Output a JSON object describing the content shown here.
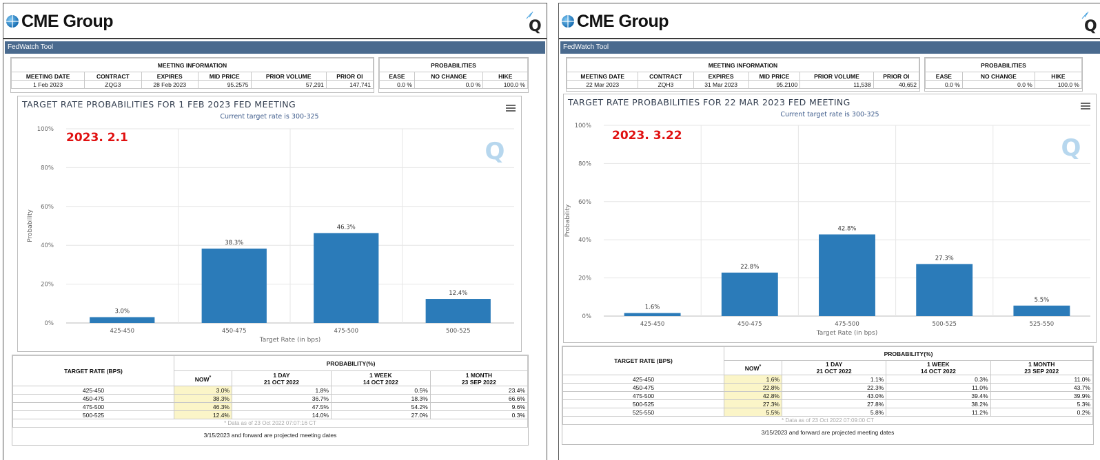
{
  "brand": "CME Group",
  "toolbar_title": "FedWatch Tool",
  "colors": {
    "bar": "#2b7bb9",
    "toolbar": "#4a6a8e",
    "date_label": "#e01010",
    "highlight": "#fbf5c8"
  },
  "panels": [
    {
      "meeting_info_title": "MEETING INFORMATION",
      "probabilities_title": "PROBABILITIES",
      "meeting_headers": [
        "MEETING DATE",
        "CONTRACT",
        "EXPIRES",
        "MID PRICE",
        "PRIOR VOLUME",
        "PRIOR OI"
      ],
      "meeting_values": [
        "1 Feb 2023",
        "ZQG3",
        "28 Feb 2023",
        "95.2575",
        "57,291",
        "147,741"
      ],
      "prob_headers": [
        "EASE",
        "NO CHANGE",
        "HIKE"
      ],
      "prob_values": [
        "0.0 %",
        "0.0 %",
        "100.0 %"
      ],
      "date_label": "2023. 2.1",
      "menu_icon": "hamburger-menu-icon",
      "table": {
        "target_header": "TARGET RATE (BPS)",
        "prob_header": "PROBABILITY(%)",
        "cols": [
          {
            "l1": "NOW",
            "l2": ""
          },
          {
            "l1": "1 DAY",
            "l2": "21 OCT 2022"
          },
          {
            "l1": "1 WEEK",
            "l2": "14 OCT 2022"
          },
          {
            "l1": "1 MONTH",
            "l2": "23 SEP 2022"
          }
        ],
        "rows": [
          [
            "425-450",
            "3.0%",
            "1.8%",
            "0.5%",
            "23.4%"
          ],
          [
            "450-475",
            "38.3%",
            "36.7%",
            "18.3%",
            "66.6%"
          ],
          [
            "475-500",
            "46.3%",
            "47.5%",
            "54.2%",
            "9.6%"
          ],
          [
            "500-525",
            "12.4%",
            "14.0%",
            "27.0%",
            "0.3%"
          ]
        ],
        "note": "* Data as of 23 Oct 2022 07:07:16 CT"
      },
      "footer": "3/15/2023 and forward are projected meeting dates"
    },
    {
      "meeting_info_title": "MEETING INFORMATION",
      "probabilities_title": "PROBABILITIES",
      "meeting_headers": [
        "MEETING DATE",
        "CONTRACT",
        "EXPIRES",
        "MID PRICE",
        "PRIOR VOLUME",
        "PRIOR OI"
      ],
      "meeting_values": [
        "22 Mar 2023",
        "ZQH3",
        "31 Mar 2023",
        "95.2100",
        "11,538",
        "40,652"
      ],
      "prob_headers": [
        "EASE",
        "NO CHANGE",
        "HIKE"
      ],
      "prob_values": [
        "0.0 %",
        "0.0 %",
        "100.0 %"
      ],
      "date_label": "2023. 3.22",
      "menu_icon": "hamburger-menu-icon",
      "table": {
        "target_header": "TARGET RATE (BPS)",
        "prob_header": "PROBABILITY(%)",
        "cols": [
          {
            "l1": "NOW",
            "l2": ""
          },
          {
            "l1": "1 DAY",
            "l2": "21 OCT 2022"
          },
          {
            "l1": "1 WEEK",
            "l2": "14 OCT 2022"
          },
          {
            "l1": "1 MONTH",
            "l2": "23 SEP 2022"
          }
        ],
        "rows": [
          [
            "425-450",
            "1.6%",
            "1.1%",
            "0.3%",
            "11.0%"
          ],
          [
            "450-475",
            "22.8%",
            "22.3%",
            "11.0%",
            "43.7%"
          ],
          [
            "475-500",
            "42.8%",
            "43.0%",
            "39.4%",
            "39.9%"
          ],
          [
            "500-525",
            "27.3%",
            "27.8%",
            "38.2%",
            "5.3%"
          ],
          [
            "525-550",
            "5.5%",
            "5.8%",
            "11.2%",
            "0.2%"
          ]
        ],
        "note": "* Data as of 23 Oct 2022 07:09:00 CT"
      },
      "footer": "3/15/2023 and forward are projected meeting dates"
    }
  ],
  "chart_data": [
    {
      "type": "bar",
      "title": "TARGET RATE PROBABILITIES FOR 1 FEB 2023 FED MEETING",
      "subtitle": "Current target rate is 300-325",
      "xlabel": "Target Rate (in bps)",
      "ylabel": "Probability",
      "ylim": [
        0,
        100
      ],
      "yticks": [
        "0%",
        "20%",
        "40%",
        "60%",
        "80%",
        "100%"
      ],
      "categories": [
        "425-450",
        "450-475",
        "475-500",
        "500-525"
      ],
      "values": [
        3.0,
        38.3,
        46.3,
        12.4
      ],
      "labels": [
        "3.0%",
        "38.3%",
        "46.3%",
        "12.4%"
      ]
    },
    {
      "type": "bar",
      "title": "TARGET RATE PROBABILITIES FOR 22 MAR 2023 FED MEETING",
      "subtitle": "Current target rate is 300-325",
      "xlabel": "Target Rate (in bps)",
      "ylabel": "Probability",
      "ylim": [
        0,
        100
      ],
      "yticks": [
        "0%",
        "20%",
        "40%",
        "60%",
        "80%",
        "100%"
      ],
      "categories": [
        "425-450",
        "450-475",
        "475-500",
        "500-525",
        "525-550"
      ],
      "values": [
        1.6,
        22.8,
        42.8,
        27.3,
        5.5
      ],
      "labels": [
        "1.6%",
        "22.8%",
        "42.8%",
        "27.3%",
        "5.5%"
      ]
    }
  ]
}
